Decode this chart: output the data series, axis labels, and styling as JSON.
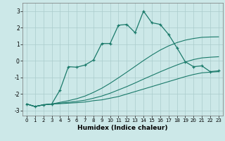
{
  "xlabel": "Humidex (Indice chaleur)",
  "bg_color": "#cce8e8",
  "grid_color": "#aacccc",
  "line_color": "#1a7a6a",
  "xlim": [
    -0.5,
    23.5
  ],
  "ylim": [
    -3.3,
    3.5
  ],
  "xticks": [
    0,
    1,
    2,
    3,
    4,
    5,
    6,
    7,
    8,
    9,
    10,
    11,
    12,
    13,
    14,
    15,
    16,
    17,
    18,
    19,
    20,
    21,
    22,
    23
  ],
  "yticks": [
    -3,
    -2,
    -1,
    0,
    1,
    2,
    3
  ],
  "line1_x": [
    0,
    1,
    2,
    3,
    4,
    5,
    6,
    7,
    8,
    9,
    10,
    11,
    12,
    13,
    14,
    15,
    16,
    17,
    18,
    19,
    20,
    21,
    22,
    23
  ],
  "line1_y": [
    -2.6,
    -2.75,
    -2.65,
    -2.6,
    -2.58,
    -2.55,
    -2.52,
    -2.48,
    -2.4,
    -2.35,
    -2.25,
    -2.15,
    -2.0,
    -1.85,
    -1.7,
    -1.55,
    -1.4,
    -1.25,
    -1.1,
    -0.95,
    -0.82,
    -0.72,
    -0.68,
    -0.65
  ],
  "line2_x": [
    0,
    1,
    2,
    3,
    4,
    5,
    6,
    7,
    8,
    9,
    10,
    11,
    12,
    13,
    14,
    15,
    16,
    17,
    18,
    19,
    20,
    21,
    22,
    23
  ],
  "line2_y": [
    -2.6,
    -2.75,
    -2.65,
    -2.6,
    -2.55,
    -2.5,
    -2.44,
    -2.37,
    -2.25,
    -2.12,
    -1.95,
    -1.75,
    -1.55,
    -1.33,
    -1.1,
    -0.88,
    -0.66,
    -0.45,
    -0.25,
    -0.07,
    0.08,
    0.18,
    0.22,
    0.25
  ],
  "line3_x": [
    0,
    1,
    2,
    3,
    4,
    5,
    6,
    7,
    8,
    9,
    10,
    11,
    12,
    13,
    14,
    15,
    16,
    17,
    18,
    19,
    20,
    21,
    22,
    23
  ],
  "line3_y": [
    -2.6,
    -2.75,
    -2.65,
    -2.6,
    -2.5,
    -2.4,
    -2.28,
    -2.12,
    -1.9,
    -1.65,
    -1.35,
    -1.02,
    -0.68,
    -0.33,
    0.02,
    0.35,
    0.65,
    0.9,
    1.1,
    1.25,
    1.35,
    1.42,
    1.44,
    1.45
  ],
  "line4_x": [
    0,
    1,
    2,
    3,
    4,
    5,
    6,
    7,
    8,
    9,
    10,
    11,
    12,
    13,
    14,
    15,
    16,
    17,
    18,
    19,
    20,
    21,
    22,
    23
  ],
  "line4_y": [
    -2.6,
    -2.75,
    -2.65,
    -2.6,
    -1.75,
    -0.35,
    -0.38,
    -0.25,
    0.05,
    1.05,
    1.05,
    2.15,
    2.2,
    1.7,
    3.0,
    2.3,
    2.2,
    1.6,
    0.8,
    -0.05,
    -0.35,
    -0.3,
    -0.65,
    -0.6
  ],
  "marker": "+"
}
